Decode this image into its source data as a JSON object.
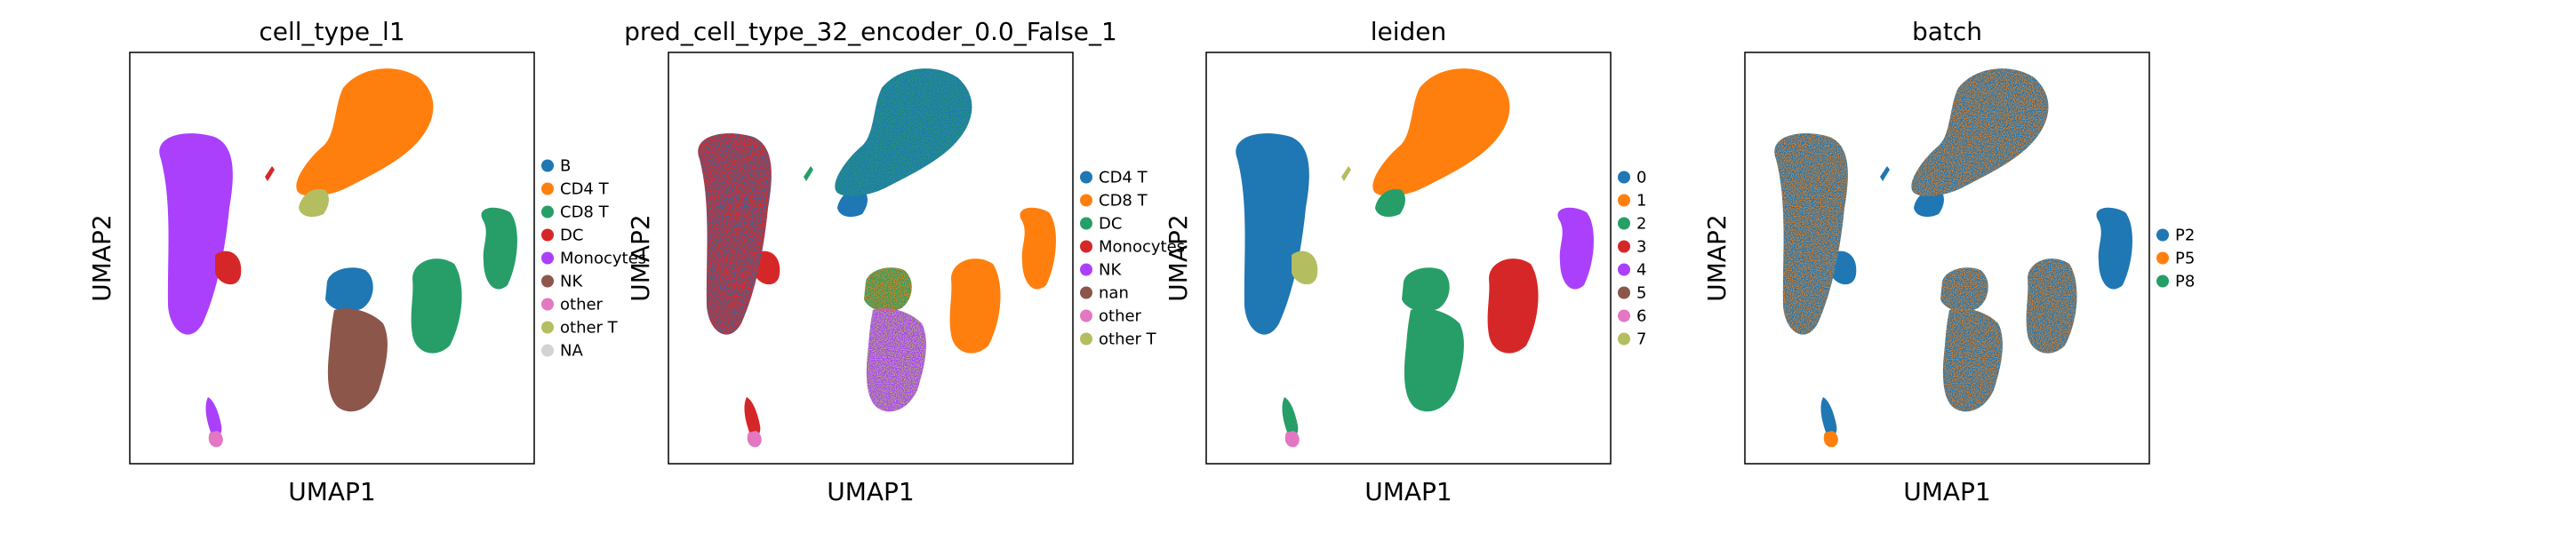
{
  "chart_data": [
    {
      "type": "scatter",
      "title": "cell_type_l1",
      "xlabel": "UMAP1",
      "ylabel": "UMAP2",
      "grid": false,
      "legend_position": "right",
      "series": [
        {
          "name": "B",
          "color": "#1f77b4"
        },
        {
          "name": "CD4 T",
          "color": "#ff7f0e"
        },
        {
          "name": "CD8 T",
          "color": "#279e68"
        },
        {
          "name": "DC",
          "color": "#d62728"
        },
        {
          "name": "Monocytes",
          "color": "#aa40fc"
        },
        {
          "name": "NK",
          "color": "#8c564b"
        },
        {
          "name": "other",
          "color": "#e377c2"
        },
        {
          "name": "other T",
          "color": "#b5bd61"
        },
        {
          "name": "NA",
          "color": "#d3d3d3"
        }
      ]
    },
    {
      "type": "scatter",
      "title": "pred_cell_type_32_encoder_0.0_False_1",
      "xlabel": "UMAP1",
      "ylabel": "UMAP2",
      "grid": false,
      "legend_position": "right",
      "series": [
        {
          "name": "CD4 T",
          "color": "#1f77b4"
        },
        {
          "name": "CD8 T",
          "color": "#ff7f0e"
        },
        {
          "name": "DC",
          "color": "#279e68"
        },
        {
          "name": "Monocytes",
          "color": "#d62728"
        },
        {
          "name": "NK",
          "color": "#aa40fc"
        },
        {
          "name": "nan",
          "color": "#8c564b"
        },
        {
          "name": "other",
          "color": "#e377c2"
        },
        {
          "name": "other T",
          "color": "#b5bd61"
        }
      ]
    },
    {
      "type": "scatter",
      "title": "leiden",
      "xlabel": "UMAP1",
      "ylabel": "UMAP2",
      "grid": false,
      "legend_position": "right",
      "series": [
        {
          "name": "0",
          "color": "#1f77b4"
        },
        {
          "name": "1",
          "color": "#ff7f0e"
        },
        {
          "name": "2",
          "color": "#279e68"
        },
        {
          "name": "3",
          "color": "#d62728"
        },
        {
          "name": "4",
          "color": "#aa40fc"
        },
        {
          "name": "5",
          "color": "#8c564b"
        },
        {
          "name": "6",
          "color": "#e377c2"
        },
        {
          "name": "7",
          "color": "#b5bd61"
        }
      ]
    },
    {
      "type": "scatter",
      "title": "batch",
      "xlabel": "UMAP1",
      "ylabel": "UMAP2",
      "grid": false,
      "legend_position": "right",
      "series": [
        {
          "name": "P2",
          "color": "#1f77b4"
        },
        {
          "name": "P5",
          "color": "#ff7f0e"
        },
        {
          "name": "P8",
          "color": "#279e68"
        }
      ]
    }
  ]
}
